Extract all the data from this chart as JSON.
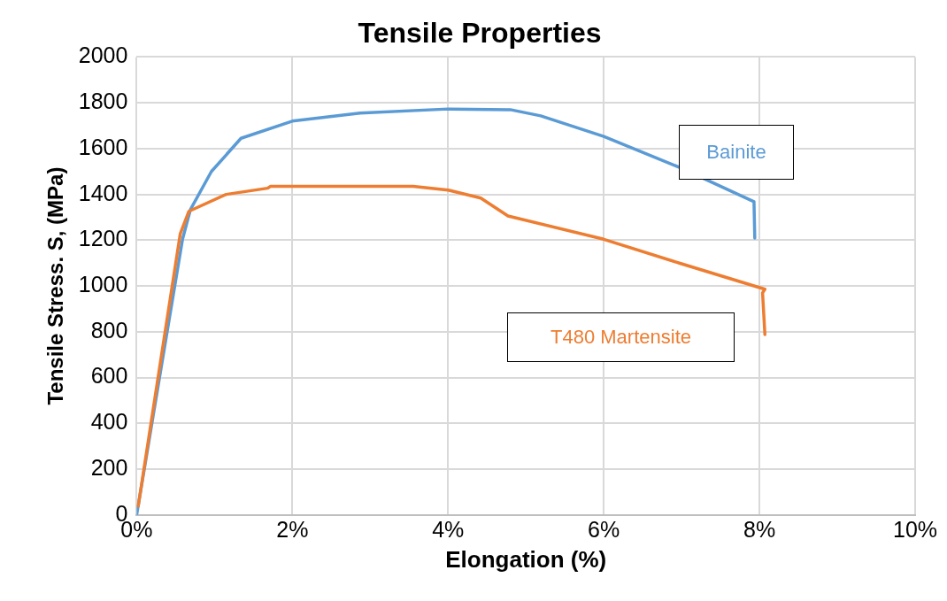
{
  "chart_data": {
    "type": "line",
    "title": "Tensile Properties",
    "xlabel": "Elongation (%)",
    "ylabel": "Tensile Stress. S, (MPa)",
    "xlim": [
      0,
      10
    ],
    "xticks": [
      {
        "value": 0,
        "label": "0%"
      },
      {
        "value": 2,
        "label": "2%"
      },
      {
        "value": 4,
        "label": "4%"
      },
      {
        "value": 6,
        "label": "6%"
      },
      {
        "value": 8,
        "label": "8%"
      },
      {
        "value": 10,
        "label": "10%"
      }
    ],
    "ylim": [
      0,
      2000
    ],
    "yticks": [
      0,
      200,
      400,
      600,
      800,
      1000,
      1200,
      1400,
      1600,
      1800,
      2000
    ],
    "grid": true,
    "legend": false,
    "marker": "none",
    "line_style": "solid",
    "series": [
      {
        "name": "Bainite",
        "color": "#5b9bd5",
        "x": [
          0,
          0.59,
          0.69,
          0.96,
          1.34,
          2,
          2.87,
          4,
          4.8,
          5.19,
          6,
          6.98,
          7.93,
          7.94
        ],
        "values": [
          0,
          1205,
          1333,
          1500,
          1645,
          1720,
          1755,
          1773,
          1770,
          1743,
          1653,
          1517,
          1368,
          1209
        ]
      },
      {
        "name": "T480 Martensite",
        "color": "#ed7d31",
        "x": [
          0.02,
          0.56,
          0.67,
          1.15,
          1.68,
          1.72,
          3.55,
          4,
          4.42,
          4.77,
          6,
          6.98,
          8.07,
          8.04,
          8.07
        ],
        "values": [
          39,
          1228,
          1326,
          1400,
          1427,
          1435,
          1435,
          1419,
          1384,
          1306,
          1204,
          1099,
          986,
          970,
          788
        ]
      }
    ]
  }
}
